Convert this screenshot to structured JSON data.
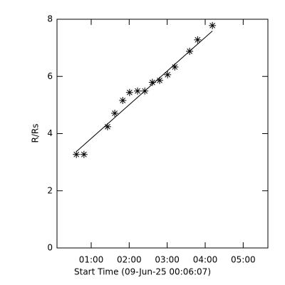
{
  "chart_data": {
    "type": "scatter",
    "xlabel": "Start Time (09-Jun-25 00:06:07)",
    "ylabel": "R/Rs",
    "xlim": [
      0.1,
      5.65
    ],
    "ylim": [
      0,
      8
    ],
    "xticks": [
      {
        "value": 1,
        "label": "01:00"
      },
      {
        "value": 2,
        "label": "02:00"
      },
      {
        "value": 3,
        "label": "03:00"
      },
      {
        "value": 4,
        "label": "04:00"
      },
      {
        "value": 5,
        "label": "05:00"
      }
    ],
    "yticks": [
      0,
      2,
      4,
      6,
      8
    ],
    "color": "#000000",
    "series": [
      {
        "x": [
          0.61,
          0.81,
          1.43,
          1.62,
          1.83,
          2.01,
          2.22,
          2.41,
          2.61,
          2.8,
          3.01,
          3.2,
          3.59,
          3.8,
          4.19
        ],
        "values": [
          3.27,
          3.27,
          4.24,
          4.71,
          5.16,
          5.44,
          5.49,
          5.49,
          5.79,
          5.86,
          6.06,
          6.33,
          6.88,
          7.28,
          7.78
        ]
      },
      {
        "type": "line",
        "x": [
          0.61,
          4.19
        ],
        "values": [
          3.37,
          7.59
        ]
      }
    ]
  }
}
